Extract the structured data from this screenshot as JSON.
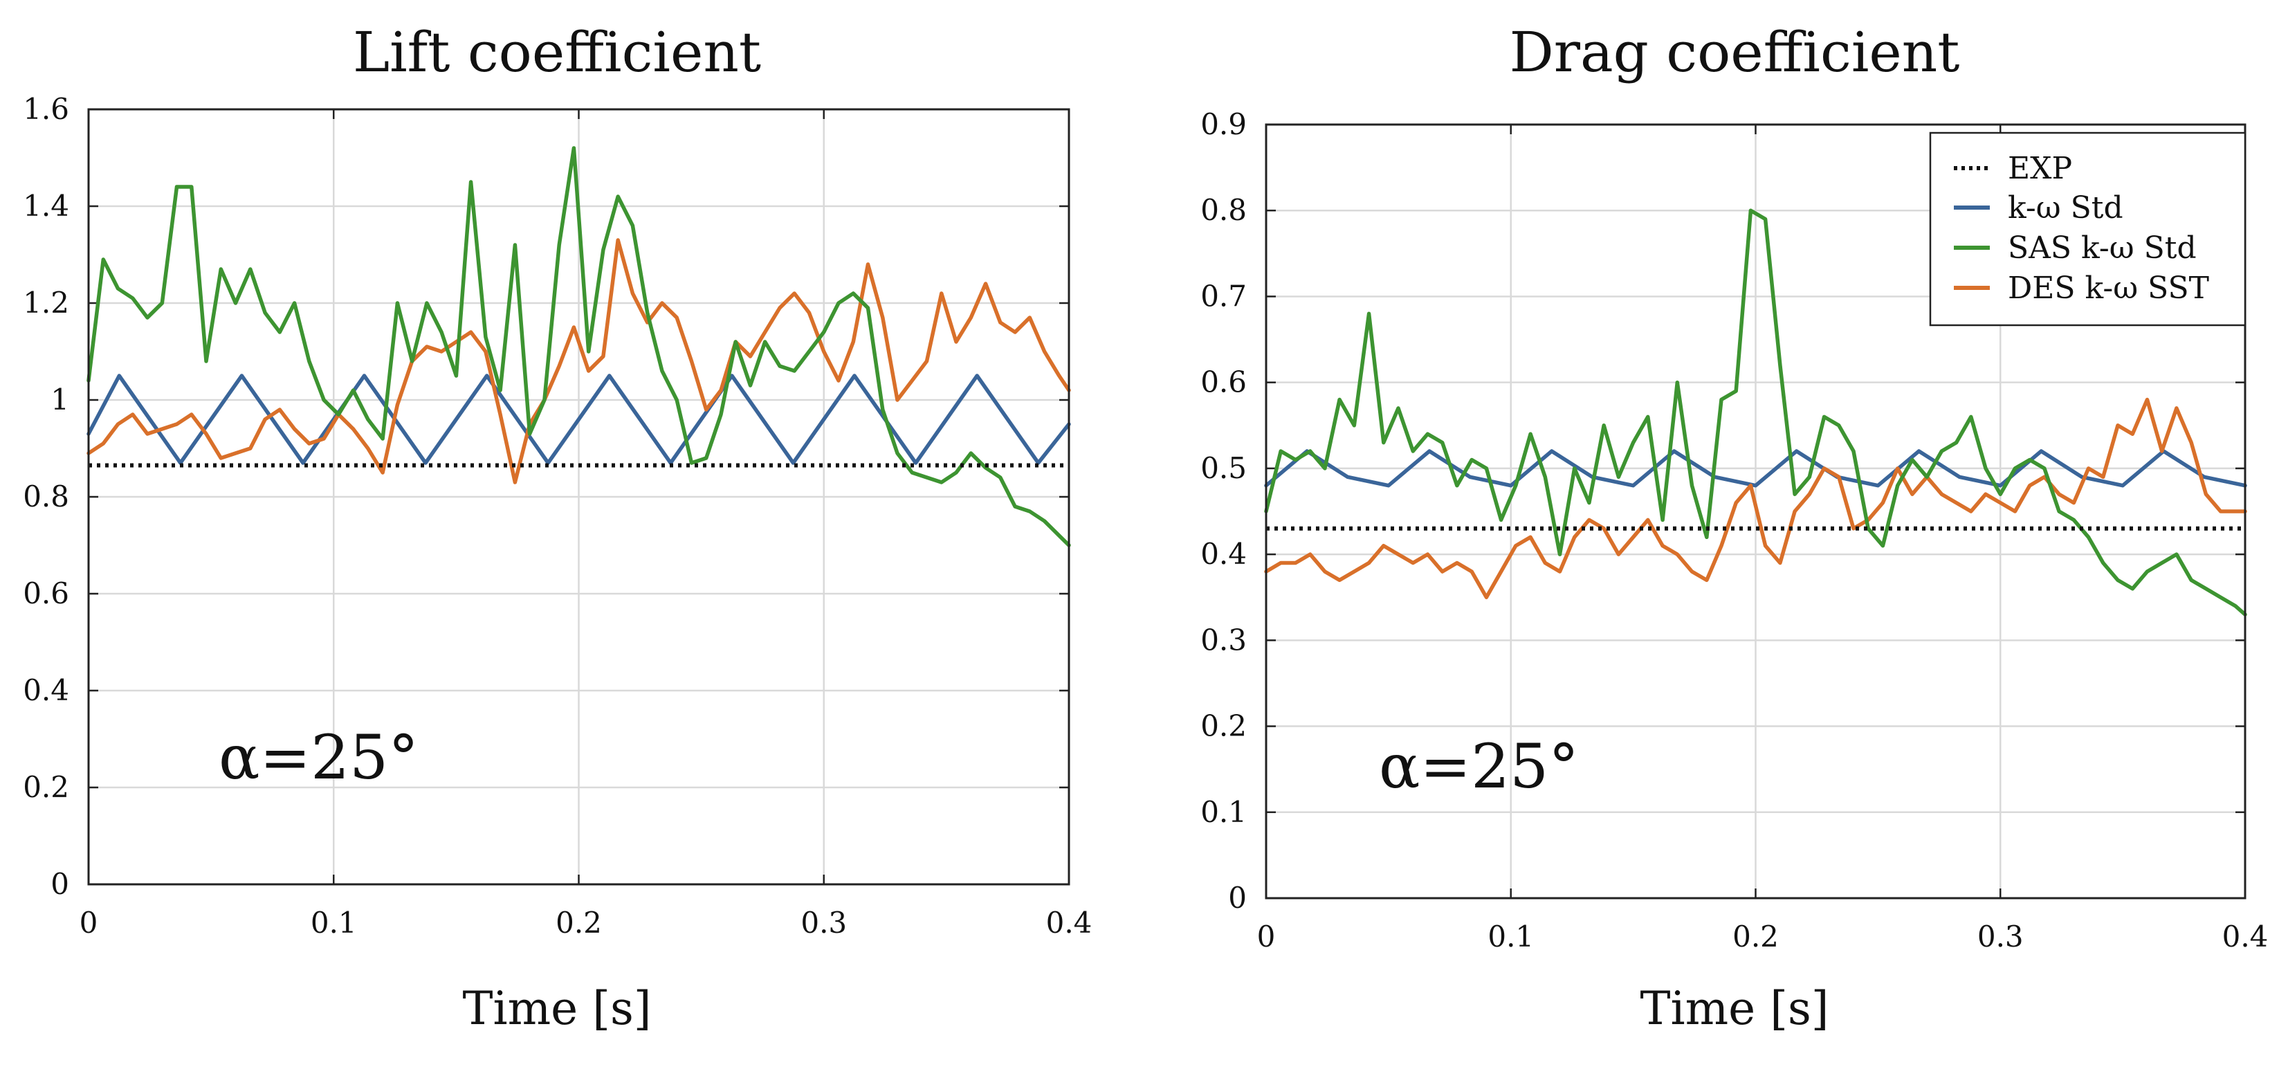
{
  "chart_data": [
    {
      "type": "line",
      "title": "Lift coefficient",
      "xlabel": "Time [s]",
      "ylabel": "",
      "xlim": [
        0,
        0.4
      ],
      "ylim": [
        0,
        1.6
      ],
      "xticks": [
        0,
        0.1,
        0.2,
        0.3,
        0.4
      ],
      "xtick_labels": [
        "0",
        "0.1",
        "0.2",
        "0.3",
        "0.4"
      ],
      "yticks": [
        0,
        0.2,
        0.4,
        0.6,
        0.8,
        1,
        1.2,
        1.4,
        1.6
      ],
      "ytick_labels": [
        "0",
        "0.2",
        "0.4",
        "0.6",
        "0.8",
        "1",
        "1.2",
        "1.4",
        "1.6"
      ],
      "grid": true,
      "annotation": "α=25°",
      "legend": null,
      "series": [
        {
          "name": "EXP",
          "color": "#111111",
          "style": "dotted",
          "x": [
            0,
            0.4
          ],
          "y": [
            0.865,
            0.865
          ]
        },
        {
          "name": "k-ω Std",
          "color": "#3a6599",
          "style": "solid",
          "x": [
            0,
            0.0125,
            0.025,
            0.0375,
            0.05,
            0.0625,
            0.075,
            0.0875,
            0.1,
            0.1125,
            0.125,
            0.1375,
            0.15,
            0.1625,
            0.175,
            0.1875,
            0.2,
            0.2125,
            0.225,
            0.2375,
            0.25,
            0.2625,
            0.275,
            0.2875,
            0.3,
            0.3125,
            0.325,
            0.3375,
            0.35,
            0.3625,
            0.375,
            0.3875,
            0.4
          ],
          "y": [
            0.93,
            1.05,
            0.96,
            0.87,
            0.96,
            1.05,
            0.96,
            0.87,
            0.96,
            1.05,
            0.96,
            0.87,
            0.96,
            1.05,
            0.96,
            0.87,
            0.96,
            1.05,
            0.96,
            0.87,
            0.96,
            1.05,
            0.96,
            0.87,
            0.96,
            1.05,
            0.96,
            0.87,
            0.96,
            1.05,
            0.96,
            0.87,
            0.95
          ]
        },
        {
          "name": "SAS k-ω Std",
          "color": "#3d9431",
          "style": "solid",
          "x": [
            0,
            0.006,
            0.012,
            0.018,
            0.024,
            0.03,
            0.036,
            0.042,
            0.048,
            0.054,
            0.06,
            0.066,
            0.072,
            0.078,
            0.084,
            0.09,
            0.096,
            0.102,
            0.108,
            0.114,
            0.12,
            0.126,
            0.132,
            0.138,
            0.144,
            0.15,
            0.156,
            0.162,
            0.168,
            0.174,
            0.18,
            0.186,
            0.192,
            0.198,
            0.204,
            0.21,
            0.216,
            0.222,
            0.228,
            0.234,
            0.24,
            0.246,
            0.252,
            0.258,
            0.264,
            0.27,
            0.276,
            0.282,
            0.288,
            0.294,
            0.3,
            0.306,
            0.312,
            0.318,
            0.324,
            0.33,
            0.336,
            0.342,
            0.348,
            0.354,
            0.36,
            0.366,
            0.372,
            0.378,
            0.384,
            0.39,
            0.396,
            0.4
          ],
          "y": [
            1.04,
            1.29,
            1.23,
            1.21,
            1.17,
            1.2,
            1.44,
            1.44,
            1.08,
            1.27,
            1.2,
            1.27,
            1.18,
            1.14,
            1.2,
            1.08,
            1.0,
            0.97,
            1.02,
            0.96,
            0.92,
            1.2,
            1.08,
            1.2,
            1.14,
            1.05,
            1.45,
            1.13,
            1.02,
            1.32,
            0.93,
            1.0,
            1.32,
            1.52,
            1.1,
            1.31,
            1.42,
            1.36,
            1.18,
            1.06,
            1.0,
            0.87,
            0.88,
            0.97,
            1.12,
            1.03,
            1.12,
            1.07,
            1.06,
            1.1,
            1.14,
            1.2,
            1.22,
            1.19,
            0.98,
            0.89,
            0.85,
            0.84,
            0.83,
            0.85,
            0.89,
            0.86,
            0.84,
            0.78,
            0.77,
            0.75,
            0.72,
            0.7
          ]
        },
        {
          "name": "DES k-ω SST",
          "color": "#d9702a",
          "style": "solid",
          "x": [
            0,
            0.006,
            0.012,
            0.018,
            0.024,
            0.03,
            0.036,
            0.042,
            0.048,
            0.054,
            0.06,
            0.066,
            0.072,
            0.078,
            0.084,
            0.09,
            0.096,
            0.102,
            0.108,
            0.114,
            0.12,
            0.126,
            0.132,
            0.138,
            0.144,
            0.15,
            0.156,
            0.162,
            0.168,
            0.174,
            0.18,
            0.186,
            0.192,
            0.198,
            0.204,
            0.21,
            0.216,
            0.222,
            0.228,
            0.234,
            0.24,
            0.246,
            0.252,
            0.258,
            0.264,
            0.27,
            0.276,
            0.282,
            0.288,
            0.294,
            0.3,
            0.306,
            0.312,
            0.318,
            0.324,
            0.33,
            0.336,
            0.342,
            0.348,
            0.354,
            0.36,
            0.366,
            0.372,
            0.378,
            0.384,
            0.39,
            0.396,
            0.4
          ],
          "y": [
            0.89,
            0.91,
            0.95,
            0.97,
            0.93,
            0.94,
            0.95,
            0.97,
            0.93,
            0.88,
            0.89,
            0.9,
            0.96,
            0.98,
            0.94,
            0.91,
            0.92,
            0.97,
            0.94,
            0.9,
            0.85,
            0.99,
            1.08,
            1.11,
            1.1,
            1.12,
            1.14,
            1.1,
            0.97,
            0.83,
            0.95,
            1.0,
            1.07,
            1.15,
            1.06,
            1.09,
            1.33,
            1.22,
            1.16,
            1.2,
            1.17,
            1.08,
            0.98,
            1.02,
            1.12,
            1.09,
            1.14,
            1.19,
            1.22,
            1.18,
            1.1,
            1.04,
            1.12,
            1.28,
            1.17,
            1.0,
            1.04,
            1.08,
            1.22,
            1.12,
            1.17,
            1.24,
            1.16,
            1.14,
            1.17,
            1.1,
            1.05,
            1.02
          ]
        }
      ]
    },
    {
      "type": "line",
      "title": "Drag coefficient",
      "xlabel": "Time [s]",
      "ylabel": "",
      "xlim": [
        0,
        0.4
      ],
      "ylim": [
        0,
        0.9
      ],
      "xticks": [
        0,
        0.1,
        0.2,
        0.3,
        0.4
      ],
      "xtick_labels": [
        "0",
        "0.1",
        "0.2",
        "0.3",
        "0.4"
      ],
      "yticks": [
        0,
        0.1,
        0.2,
        0.3,
        0.4,
        0.5,
        0.6,
        0.7,
        0.8,
        0.9
      ],
      "ytick_labels": [
        "0",
        "0.1",
        "0.2",
        "0.3",
        "0.4",
        "0.5",
        "0.6",
        "0.7",
        "0.8",
        "0.9"
      ],
      "grid": true,
      "annotation": "α=25°",
      "legend": "top-right",
      "series": [
        {
          "name": "EXP",
          "color": "#111111",
          "style": "dotted",
          "x": [
            0,
            0.4
          ],
          "y": [
            0.43,
            0.43
          ]
        },
        {
          "name": "k-ω Std",
          "color": "#3a6599",
          "style": "solid",
          "x": [
            0,
            0.0167,
            0.0333,
            0.05,
            0.0667,
            0.0833,
            0.1,
            0.1167,
            0.1333,
            0.15,
            0.1667,
            0.1833,
            0.2,
            0.2167,
            0.2333,
            0.25,
            0.2667,
            0.2833,
            0.3,
            0.3167,
            0.3333,
            0.35,
            0.3667,
            0.3833,
            0.4
          ],
          "y": [
            0.48,
            0.52,
            0.49,
            0.48,
            0.52,
            0.49,
            0.48,
            0.52,
            0.49,
            0.48,
            0.52,
            0.49,
            0.48,
            0.52,
            0.49,
            0.48,
            0.52,
            0.49,
            0.48,
            0.52,
            0.49,
            0.48,
            0.52,
            0.49,
            0.48
          ]
        },
        {
          "name": "SAS k-ω Std",
          "color": "#3d9431",
          "style": "solid",
          "x": [
            0,
            0.006,
            0.012,
            0.018,
            0.024,
            0.03,
            0.036,
            0.042,
            0.048,
            0.054,
            0.06,
            0.066,
            0.072,
            0.078,
            0.084,
            0.09,
            0.096,
            0.102,
            0.108,
            0.114,
            0.12,
            0.126,
            0.132,
            0.138,
            0.144,
            0.15,
            0.156,
            0.162,
            0.168,
            0.174,
            0.18,
            0.186,
            0.192,
            0.198,
            0.204,
            0.21,
            0.216,
            0.222,
            0.228,
            0.234,
            0.24,
            0.246,
            0.252,
            0.258,
            0.264,
            0.27,
            0.276,
            0.282,
            0.288,
            0.294,
            0.3,
            0.306,
            0.312,
            0.318,
            0.324,
            0.33,
            0.336,
            0.342,
            0.348,
            0.354,
            0.36,
            0.366,
            0.372,
            0.378,
            0.384,
            0.39,
            0.396,
            0.4
          ],
          "y": [
            0.45,
            0.52,
            0.51,
            0.52,
            0.5,
            0.58,
            0.55,
            0.68,
            0.53,
            0.57,
            0.52,
            0.54,
            0.53,
            0.48,
            0.51,
            0.5,
            0.44,
            0.48,
            0.54,
            0.49,
            0.4,
            0.5,
            0.46,
            0.55,
            0.49,
            0.53,
            0.56,
            0.44,
            0.6,
            0.48,
            0.42,
            0.58,
            0.59,
            0.8,
            0.79,
            0.62,
            0.47,
            0.49,
            0.56,
            0.55,
            0.52,
            0.43,
            0.41,
            0.48,
            0.51,
            0.49,
            0.52,
            0.53,
            0.56,
            0.5,
            0.47,
            0.5,
            0.51,
            0.5,
            0.45,
            0.44,
            0.42,
            0.39,
            0.37,
            0.36,
            0.38,
            0.39,
            0.4,
            0.37,
            0.36,
            0.35,
            0.34,
            0.33
          ]
        },
        {
          "name": "DES k-ω SST",
          "color": "#d9702a",
          "style": "solid",
          "x": [
            0,
            0.006,
            0.012,
            0.018,
            0.024,
            0.03,
            0.036,
            0.042,
            0.048,
            0.054,
            0.06,
            0.066,
            0.072,
            0.078,
            0.084,
            0.09,
            0.096,
            0.102,
            0.108,
            0.114,
            0.12,
            0.126,
            0.132,
            0.138,
            0.144,
            0.15,
            0.156,
            0.162,
            0.168,
            0.174,
            0.18,
            0.186,
            0.192,
            0.198,
            0.204,
            0.21,
            0.216,
            0.222,
            0.228,
            0.234,
            0.24,
            0.246,
            0.252,
            0.258,
            0.264,
            0.27,
            0.276,
            0.282,
            0.288,
            0.294,
            0.3,
            0.306,
            0.312,
            0.318,
            0.324,
            0.33,
            0.336,
            0.342,
            0.348,
            0.354,
            0.36,
            0.366,
            0.372,
            0.378,
            0.384,
            0.39,
            0.396,
            0.4
          ],
          "y": [
            0.38,
            0.39,
            0.39,
            0.4,
            0.38,
            0.37,
            0.38,
            0.39,
            0.41,
            0.4,
            0.39,
            0.4,
            0.38,
            0.39,
            0.38,
            0.35,
            0.38,
            0.41,
            0.42,
            0.39,
            0.38,
            0.42,
            0.44,
            0.43,
            0.4,
            0.42,
            0.44,
            0.41,
            0.4,
            0.38,
            0.37,
            0.41,
            0.46,
            0.48,
            0.41,
            0.39,
            0.45,
            0.47,
            0.5,
            0.49,
            0.43,
            0.44,
            0.46,
            0.5,
            0.47,
            0.49,
            0.47,
            0.46,
            0.45,
            0.47,
            0.46,
            0.45,
            0.48,
            0.49,
            0.47,
            0.46,
            0.5,
            0.49,
            0.55,
            0.54,
            0.58,
            0.52,
            0.57,
            0.53,
            0.47,
            0.45,
            0.45,
            0.45
          ]
        }
      ]
    }
  ]
}
